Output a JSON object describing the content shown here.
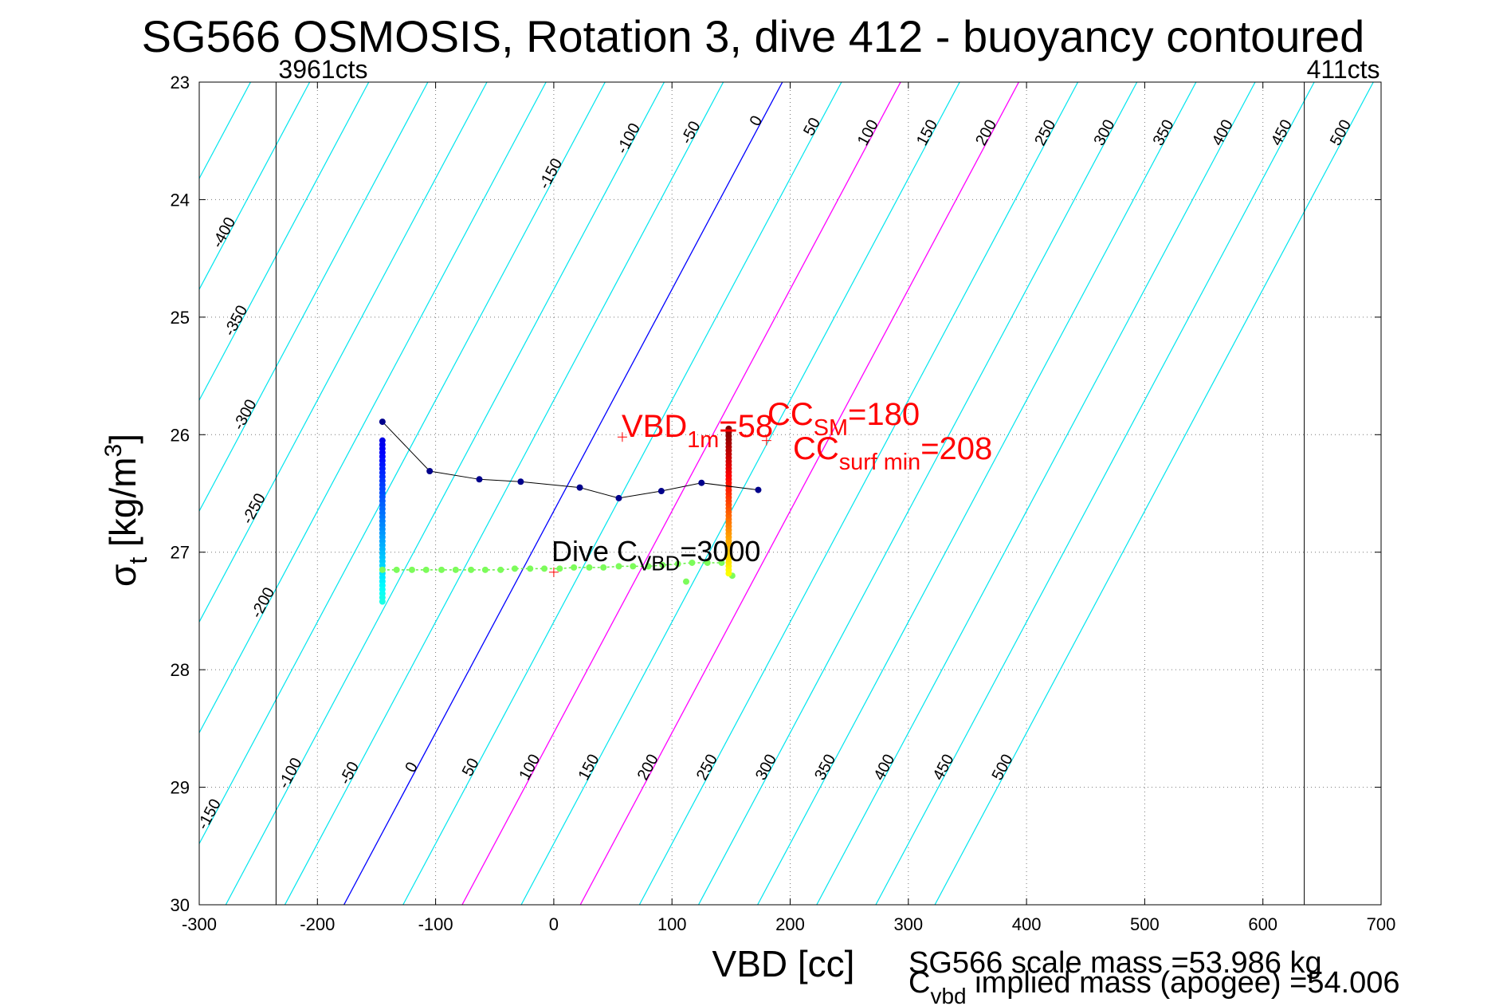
{
  "title": "SG566 OSMOSIS, Rotation 3, dive 412 - buoyancy contoured",
  "footer_mass_line1": "SG566 scale mass =53.986 kg",
  "footer_mass_line2_main": "C",
  "footer_mass_line2_sub": "vbd",
  "footer_mass_line2_rest": " implied mass (apogee) =54.006",
  "colors": {
    "contour": "#00e5ee",
    "zero_line": "#0000ff",
    "magenta": "#ff00ff",
    "red_text": "#ff0000",
    "track_blue": "#00008b"
  },
  "chart_data": {
    "type": "scatter",
    "title": "SG566 OSMOSIS, Rotation 3, dive 412 - buoyancy contoured",
    "xlabel": "VBD [cc]",
    "ylabel_sym": "σ",
    "ylabel_sub": "t",
    "ylabel_unit": " [kg/m",
    "ylabel_sup": "3",
    "ylabel_close": "]",
    "xlim": [
      -300,
      700
    ],
    "ylim": [
      23,
      30
    ],
    "y_reversed": true,
    "grid": true,
    "xticks": [
      -300,
      -200,
      -100,
      0,
      100,
      200,
      300,
      400,
      500,
      600,
      700
    ],
    "yticks": [
      23,
      24,
      25,
      26,
      27,
      28,
      29,
      30
    ],
    "vbd_limits": [
      {
        "x": -235,
        "label": "3961cts"
      },
      {
        "x": 635,
        "label": "411cts"
      }
    ],
    "contours": {
      "slope_vbd_per_sigma": -53,
      "levels": [
        -450,
        -400,
        -350,
        -300,
        -250,
        -200,
        -150,
        -100,
        -50,
        0,
        50,
        100,
        150,
        200,
        250,
        300,
        350,
        400,
        450,
        500
      ],
      "top_labels": [
        "-400",
        "-350",
        "-300",
        "-250",
        "-200",
        "-150",
        "-100",
        "-50",
        "0",
        "50",
        "100",
        "150",
        "200",
        "250",
        "300",
        "350",
        "400",
        "450",
        "500"
      ],
      "top_label_levels": [
        -400,
        -350,
        -300,
        -250,
        -200,
        -150,
        -100,
        -50,
        0,
        50,
        100,
        150,
        200,
        250,
        300,
        350,
        400,
        450,
        500
      ],
      "top_label_sigma": [
        24.3,
        25.05,
        25.85,
        26.65,
        27.45,
        23.8,
        23.5,
        23.45,
        23.35,
        23.4,
        23.45,
        23.45,
        23.45,
        23.45,
        23.45,
        23.45,
        23.45,
        23.45,
        23.45
      ],
      "bottom_labels": [
        "-150",
        "-100",
        "-50",
        "0",
        "50",
        "100",
        "150",
        "200",
        "250",
        "300",
        "350",
        "400",
        "450",
        "500"
      ],
      "bottom_label_levels": [
        -150,
        -100,
        -50,
        0,
        50,
        100,
        150,
        200,
        250,
        300,
        350,
        400,
        450,
        500
      ],
      "bottom_label_sigma": [
        29.25,
        28.9,
        28.9,
        28.85,
        28.85,
        28.85,
        28.85,
        28.85,
        28.85,
        28.85,
        28.85,
        28.85,
        28.85,
        28.85
      ],
      "magenta_levels": [
        100,
        200
      ]
    },
    "bin_track": {
      "x": [
        -145,
        -105,
        -63,
        -28,
        22,
        55,
        91,
        125,
        173
      ],
      "y": [
        25.89,
        26.31,
        26.38,
        26.4,
        26.45,
        26.54,
        26.48,
        26.41,
        26.47
      ]
    },
    "descent_column": {
      "x": -145,
      "y_start": 26.05,
      "y_end": 27.42
    },
    "apogee_points": {
      "x": [
        -145,
        -133,
        -120,
        -108,
        -95,
        -83,
        -70,
        -58,
        -45,
        -33,
        -20,
        -8,
        5,
        17,
        30,
        42,
        55,
        67,
        80,
        92,
        105,
        117,
        130,
        142
      ],
      "y": [
        27.15,
        27.15,
        27.15,
        27.15,
        27.15,
        27.15,
        27.15,
        27.15,
        27.15,
        27.14,
        27.14,
        27.14,
        27.14,
        27.13,
        27.13,
        27.13,
        27.12,
        27.12,
        27.12,
        27.11,
        27.1,
        27.09,
        27.09,
        27.09
      ],
      "extra_x": [
        112,
        151
      ],
      "extra_y": [
        27.25,
        27.2
      ]
    },
    "climb_column": {
      "x": 148,
      "y_start": 25.95,
      "y_end": 27.18
    },
    "markers": [
      {
        "x": 58,
        "y": 26.02
      },
      {
        "x": 0,
        "y": 27.17
      },
      {
        "x": 180,
        "y": 26.05
      }
    ],
    "annotations": {
      "vbd1m": {
        "main": "VBD",
        "sub": "1m",
        "rest": "=58"
      },
      "ccsm": {
        "main": "CC",
        "sub": "SM",
        "rest": "=180"
      },
      "ccsurf": {
        "main": "CC",
        "sub": "surf min",
        "rest": "=208"
      },
      "divec": {
        "main": "Dive C",
        "sub": "VBD",
        "rest": "=3000"
      }
    }
  }
}
